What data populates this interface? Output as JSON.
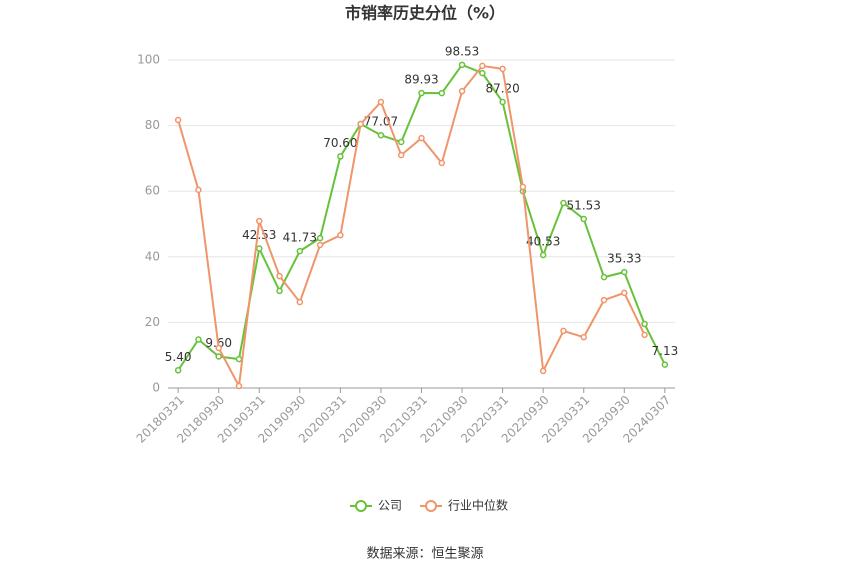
{
  "chart_data": {
    "type": "line",
    "title": "市销率历史分位（%）",
    "source": "数据来源：恒生聚源",
    "categories": [
      "20180331",
      null,
      "20180930",
      null,
      "20190331",
      null,
      "20190930",
      null,
      "20200331",
      null,
      "20200930",
      null,
      "20210331",
      null,
      "20210930",
      null,
      "20220331",
      null,
      "20220930",
      null,
      "20230331",
      null,
      "20230930",
      null,
      "20240307"
    ],
    "series": [
      {
        "name": "公司",
        "color": "#67c23a",
        "values": [
          5.4,
          14.8,
          9.6,
          8.8,
          42.53,
          29.6,
          41.73,
          45.7,
          70.6,
          80.5,
          77.07,
          75.0,
          89.93,
          89.9,
          98.53,
          96.0,
          87.2,
          60.0,
          40.53,
          56.4,
          51.53,
          33.8,
          35.33,
          19.5,
          7.13
        ],
        "value_labels": [
          "5.40",
          null,
          "9.60",
          null,
          "42.53",
          null,
          "41.73",
          null,
          "70.60",
          null,
          "77.07",
          null,
          "89.93",
          null,
          "98.53",
          null,
          "87.20",
          null,
          "40.53",
          null,
          "51.53",
          null,
          "35.33",
          null,
          "7.13"
        ]
      },
      {
        "name": "行业中位数",
        "color": "#f0956a",
        "values": [
          81.7,
          60.4,
          12.2,
          0.6,
          50.9,
          34.1,
          26.2,
          43.6,
          46.6,
          80.5,
          87.2,
          71.0,
          76.2,
          68.6,
          90.5,
          98.2,
          97.3,
          61.3,
          5.2,
          17.4,
          15.5,
          26.8,
          29.0,
          16.2,
          null
        ]
      }
    ],
    "ylim": [
      0,
      100
    ],
    "yticks": [
      0,
      20,
      40,
      60,
      80,
      100
    ],
    "grid": true,
    "legend": "bottom"
  }
}
